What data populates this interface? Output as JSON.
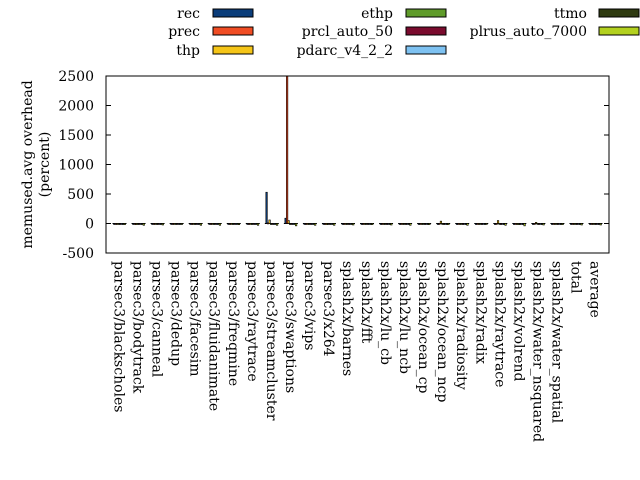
{
  "chart_data": {
    "type": "bar",
    "title": "",
    "xlabel": "",
    "ylabel": "memused.avg overhead\n(percent)",
    "ylim": [
      -500,
      2500
    ],
    "yticks": [
      -500,
      0,
      500,
      1000,
      1500,
      2000,
      2500
    ],
    "grid": false,
    "legend_position": "top",
    "categories": [
      "parsec3/blackscholes",
      "parsec3/bodytrack",
      "parsec3/canneal",
      "parsec3/dedup",
      "parsec3/facesim",
      "parsec3/fluidanimate",
      "parsec3/freqmine",
      "parsec3/raytrace",
      "parsec3/streamcluster",
      "parsec3/swaptions",
      "parsec3/vips",
      "parsec3/x264",
      "splash2x/barnes",
      "splash2x/fft",
      "splash2x/lu_cb",
      "splash2x/lu_ncb",
      "splash2x/ocean_cp",
      "splash2x/ocean_ncp",
      "splash2x/radiosity",
      "splash2x/radix",
      "splash2x/raytrace",
      "splash2x/volrend",
      "splash2x/water_nsquared",
      "splash2x/water_spatial",
      "total",
      "average"
    ],
    "series": [
      {
        "name": "rec",
        "color": "#0b3d7a",
        "values": [
          -5,
          -5,
          -5,
          -5,
          -5,
          -5,
          -5,
          -5,
          530,
          90,
          -5,
          -5,
          -5,
          -5,
          -5,
          -5,
          -5,
          -5,
          -5,
          -5,
          -5,
          -5,
          -5,
          -5,
          -5,
          -5
        ]
      },
      {
        "name": "prec",
        "color": "#f04d24",
        "values": [
          -5,
          -10,
          -5,
          -5,
          -5,
          -5,
          -5,
          -5,
          10,
          2500,
          -5,
          -5,
          -5,
          -5,
          -5,
          -5,
          -5,
          -5,
          -5,
          -5,
          -5,
          -5,
          -5,
          -5,
          -5,
          -5
        ]
      },
      {
        "name": "thp",
        "color": "#f5c518",
        "values": [
          -10,
          -20,
          -15,
          -5,
          -10,
          -15,
          -10,
          -10,
          60,
          50,
          -15,
          -20,
          -10,
          -10,
          -10,
          -15,
          -5,
          40,
          -10,
          -5,
          50,
          -15,
          20,
          -10,
          -10,
          -10
        ]
      },
      {
        "name": "ethp",
        "color": "#5f9b2a",
        "values": [
          -5,
          -10,
          -5,
          -5,
          -10,
          -10,
          -5,
          -10,
          -10,
          -10,
          -10,
          -10,
          -10,
          -10,
          -10,
          -15,
          -5,
          -5,
          -10,
          -5,
          -10,
          -20,
          -5,
          -10,
          -10,
          -10
        ]
      },
      {
        "name": "prcl_auto_50",
        "color": "#7a0b2e",
        "values": [
          -5,
          -5,
          -5,
          -5,
          -5,
          -5,
          -5,
          -5,
          -10,
          -5,
          -5,
          -5,
          -5,
          -5,
          -5,
          -5,
          -5,
          -5,
          -5,
          -5,
          -5,
          -5,
          -5,
          -5,
          -5,
          -5
        ]
      },
      {
        "name": "pdarc_v4_2_2",
        "color": "#7ec2f2",
        "values": [
          -5,
          -10,
          -5,
          -5,
          -10,
          -10,
          -5,
          -10,
          -10,
          -5,
          -10,
          -10,
          -10,
          -5,
          -10,
          -15,
          -5,
          -5,
          -10,
          -5,
          -10,
          -15,
          -10,
          -10,
          -10,
          -10
        ]
      },
      {
        "name": "ttmo",
        "color": "#2e3a10",
        "values": [
          -5,
          -5,
          -5,
          -5,
          -5,
          -5,
          -5,
          -5,
          -10,
          -5,
          -5,
          -5,
          -5,
          -5,
          -5,
          -5,
          -5,
          -5,
          -5,
          -5,
          -5,
          -5,
          -5,
          -5,
          -5,
          -5
        ]
      },
      {
        "name": "plrus_auto_7000",
        "color": "#b3d11f",
        "values": [
          -20,
          -30,
          -25,
          -10,
          -30,
          -30,
          -20,
          -30,
          -30,
          -40,
          -30,
          -30,
          -25,
          -20,
          -25,
          -30,
          -20,
          -20,
          -30,
          -15,
          -30,
          -40,
          -25,
          -20,
          -25,
          -25
        ]
      }
    ]
  }
}
